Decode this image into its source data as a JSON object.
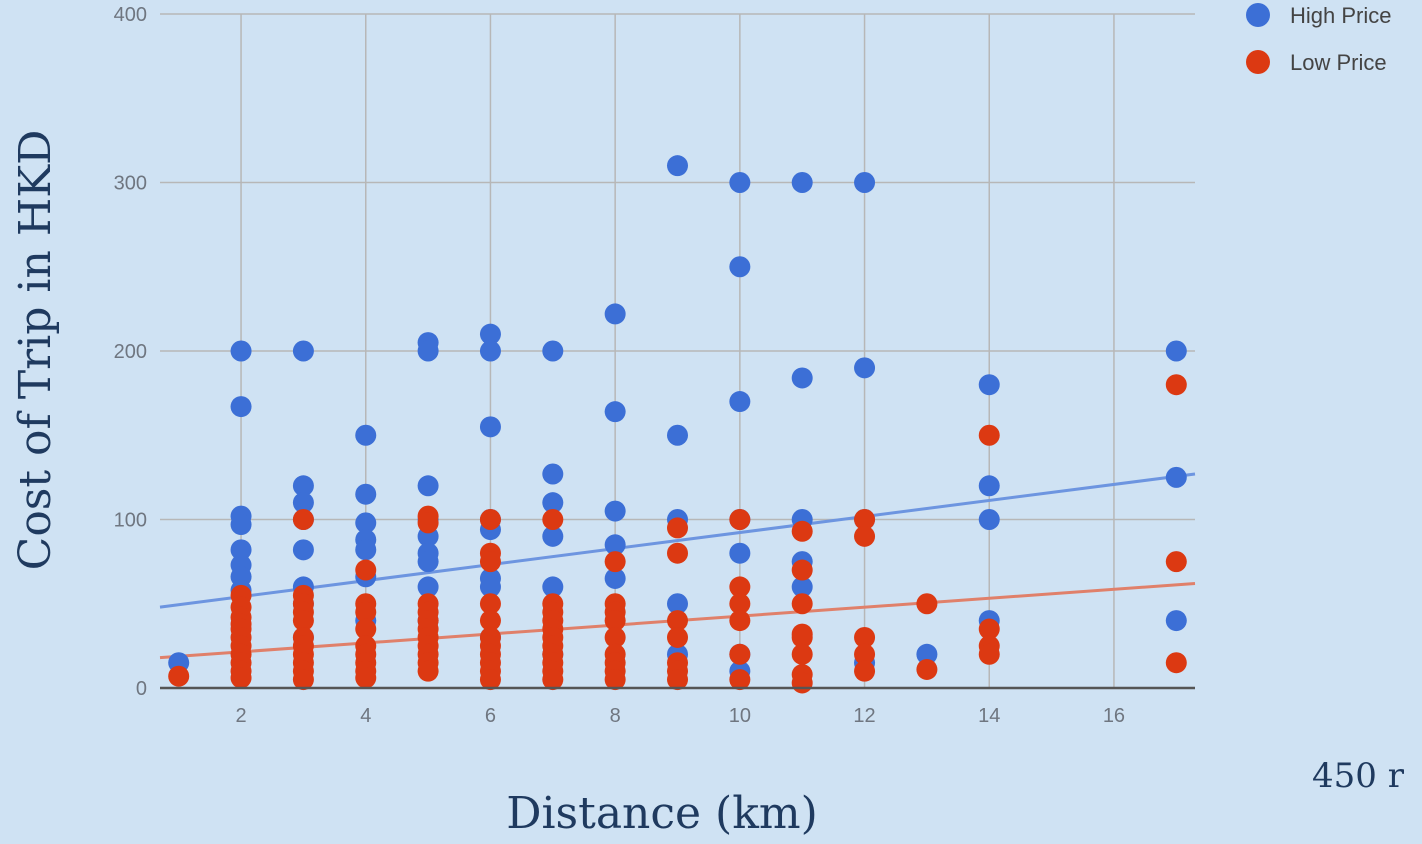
{
  "chart_data": {
    "type": "scatter",
    "xlabel": "Distance (km)",
    "ylabel": "Cost of Trip in HKD",
    "xlim": [
      0.7,
      17.3
    ],
    "ylim": [
      0,
      400
    ],
    "x_ticks": [
      2,
      4,
      6,
      8,
      10,
      12,
      14,
      16
    ],
    "y_ticks": [
      0,
      100,
      200,
      300,
      400
    ],
    "grid": true,
    "legend_position": "top-right",
    "note": "450 r",
    "series": [
      {
        "name": "High Price",
        "color": "#3c6fd6",
        "trendline_color": "#6d95e0",
        "trendline": [
          [
            0.7,
            48
          ],
          [
            17.3,
            127
          ]
        ],
        "points": [
          [
            1,
            15
          ],
          [
            2,
            200
          ],
          [
            2,
            167
          ],
          [
            2,
            102
          ],
          [
            2,
            97
          ],
          [
            2,
            82
          ],
          [
            2,
            73
          ],
          [
            2,
            66
          ],
          [
            2,
            58
          ],
          [
            3,
            200
          ],
          [
            3,
            120
          ],
          [
            3,
            110
          ],
          [
            3,
            100
          ],
          [
            3,
            82
          ],
          [
            3,
            60
          ],
          [
            3,
            50
          ],
          [
            3,
            30
          ],
          [
            4,
            150
          ],
          [
            4,
            115
          ],
          [
            4,
            98
          ],
          [
            4,
            88
          ],
          [
            4,
            82
          ],
          [
            4,
            66
          ],
          [
            4,
            40
          ],
          [
            5,
            205
          ],
          [
            5,
            200
          ],
          [
            5,
            120
          ],
          [
            5,
            100
          ],
          [
            5,
            90
          ],
          [
            5,
            80
          ],
          [
            5,
            75
          ],
          [
            5,
            60
          ],
          [
            5,
            40
          ],
          [
            6,
            210
          ],
          [
            6,
            200
          ],
          [
            6,
            155
          ],
          [
            6,
            100
          ],
          [
            6,
            94
          ],
          [
            6,
            65
          ],
          [
            6,
            60
          ],
          [
            6,
            30
          ],
          [
            7,
            200
          ],
          [
            7,
            127
          ],
          [
            7,
            110
          ],
          [
            7,
            90
          ],
          [
            7,
            60
          ],
          [
            7,
            20
          ],
          [
            8,
            222
          ],
          [
            8,
            164
          ],
          [
            8,
            105
          ],
          [
            8,
            85
          ],
          [
            8,
            65
          ],
          [
            9,
            310
          ],
          [
            9,
            150
          ],
          [
            9,
            100
          ],
          [
            9,
            50
          ],
          [
            9,
            20
          ],
          [
            10,
            300
          ],
          [
            10,
            250
          ],
          [
            10,
            170
          ],
          [
            10,
            100
          ],
          [
            10,
            80
          ],
          [
            10,
            20
          ],
          [
            10,
            10
          ],
          [
            11,
            300
          ],
          [
            11,
            184
          ],
          [
            11,
            100
          ],
          [
            11,
            75
          ],
          [
            11,
            60
          ],
          [
            12,
            300
          ],
          [
            12,
            190
          ],
          [
            12,
            100
          ],
          [
            12,
            15
          ],
          [
            13,
            20
          ],
          [
            14,
            180
          ],
          [
            14,
            120
          ],
          [
            14,
            100
          ],
          [
            14,
            40
          ],
          [
            17,
            200
          ],
          [
            17,
            125
          ],
          [
            17,
            40
          ]
        ]
      },
      {
        "name": "Low Price",
        "color": "#dc3912",
        "trendline_color": "#e0806a",
        "trendline": [
          [
            0.7,
            18
          ],
          [
            17.3,
            62
          ]
        ],
        "points": [
          [
            1,
            7
          ],
          [
            2,
            55
          ],
          [
            2,
            48
          ],
          [
            2,
            42
          ],
          [
            2,
            38
          ],
          [
            2,
            35
          ],
          [
            2,
            30
          ],
          [
            2,
            25
          ],
          [
            2,
            20
          ],
          [
            2,
            15
          ],
          [
            2,
            10
          ],
          [
            2,
            6
          ],
          [
            3,
            100
          ],
          [
            3,
            55
          ],
          [
            3,
            50
          ],
          [
            3,
            45
          ],
          [
            3,
            40
          ],
          [
            3,
            30
          ],
          [
            3,
            25
          ],
          [
            3,
            20
          ],
          [
            3,
            15
          ],
          [
            3,
            10
          ],
          [
            3,
            5
          ],
          [
            4,
            70
          ],
          [
            4,
            50
          ],
          [
            4,
            45
          ],
          [
            4,
            35
          ],
          [
            4,
            25
          ],
          [
            4,
            20
          ],
          [
            4,
            15
          ],
          [
            4,
            10
          ],
          [
            4,
            6
          ],
          [
            5,
            102
          ],
          [
            5,
            98
          ],
          [
            5,
            50
          ],
          [
            5,
            45
          ],
          [
            5,
            40
          ],
          [
            5,
            35
          ],
          [
            5,
            30
          ],
          [
            5,
            25
          ],
          [
            5,
            20
          ],
          [
            5,
            15
          ],
          [
            5,
            10
          ],
          [
            6,
            100
          ],
          [
            6,
            80
          ],
          [
            6,
            75
          ],
          [
            6,
            50
          ],
          [
            6,
            40
          ],
          [
            6,
            30
          ],
          [
            6,
            25
          ],
          [
            6,
            20
          ],
          [
            6,
            15
          ],
          [
            6,
            10
          ],
          [
            6,
            5
          ],
          [
            7,
            100
          ],
          [
            7,
            50
          ],
          [
            7,
            45
          ],
          [
            7,
            40
          ],
          [
            7,
            35
          ],
          [
            7,
            30
          ],
          [
            7,
            25
          ],
          [
            7,
            20
          ],
          [
            7,
            15
          ],
          [
            7,
            10
          ],
          [
            7,
            5
          ],
          [
            8,
            75
          ],
          [
            8,
            50
          ],
          [
            8,
            45
          ],
          [
            8,
            40
          ],
          [
            8,
            30
          ],
          [
            8,
            20
          ],
          [
            8,
            15
          ],
          [
            8,
            10
          ],
          [
            8,
            5
          ],
          [
            9,
            95
          ],
          [
            9,
            80
          ],
          [
            9,
            40
          ],
          [
            9,
            30
          ],
          [
            9,
            15
          ],
          [
            9,
            10
          ],
          [
            9,
            5
          ],
          [
            10,
            100
          ],
          [
            10,
            60
          ],
          [
            10,
            50
          ],
          [
            10,
            40
          ],
          [
            10,
            20
          ],
          [
            10,
            5
          ],
          [
            11,
            93
          ],
          [
            11,
            70
          ],
          [
            11,
            50
          ],
          [
            11,
            32
          ],
          [
            11,
            30
          ],
          [
            11,
            20
          ],
          [
            11,
            8
          ],
          [
            11,
            3
          ],
          [
            12,
            100
          ],
          [
            12,
            90
          ],
          [
            12,
            30
          ],
          [
            12,
            20
          ],
          [
            12,
            10
          ],
          [
            13,
            50
          ],
          [
            13,
            11
          ],
          [
            14,
            150
          ],
          [
            14,
            35
          ],
          [
            14,
            25
          ],
          [
            14,
            20
          ],
          [
            17,
            180
          ],
          [
            17,
            75
          ],
          [
            17,
            15
          ]
        ]
      }
    ]
  }
}
